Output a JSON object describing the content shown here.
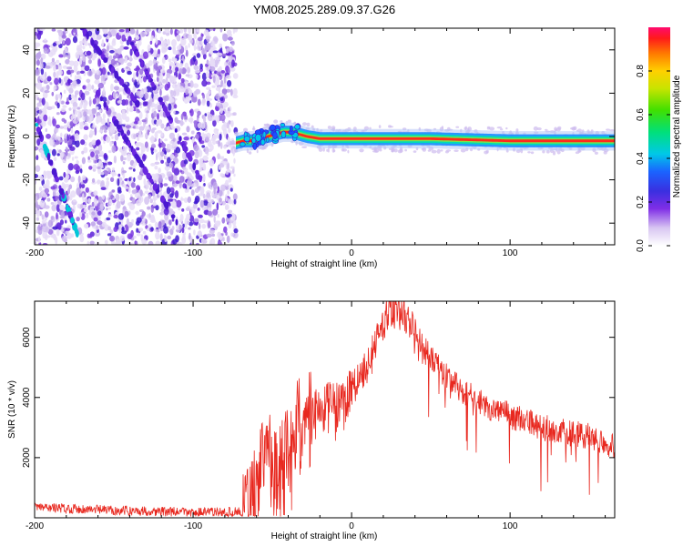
{
  "title": "YM08.2025.289.09.37.G26",
  "chart_data": [
    {
      "type": "heatmap",
      "name": "spectrogram",
      "xlabel": "Height of straight line (km)",
      "ylabel": "Frequency (Hz)",
      "xlim": [
        -200,
        166
      ],
      "ylim": [
        -50,
        50
      ],
      "xticks": [
        -200,
        -100,
        0,
        100
      ],
      "yticks": [
        -40,
        -20,
        0,
        20,
        40
      ],
      "noise_region_x": [
        -200,
        -73
      ],
      "signal_line": {
        "x": [
          -73,
          -68,
          -63,
          -58,
          -53,
          -48,
          -43,
          -38,
          -33,
          -28,
          -20,
          -10,
          0,
          20,
          50,
          100,
          166
        ],
        "y": [
          -3,
          -2,
          -2,
          -1,
          0,
          1,
          2,
          2,
          1,
          0,
          -1,
          -1,
          -1,
          -1,
          -1,
          -2,
          -2
        ]
      },
      "colorbar": {
        "label": "Normalized spectral amplitude",
        "ticks": [
          "0.0",
          "0.2",
          "0.4",
          "0.6",
          "0.8"
        ],
        "range": [
          0,
          1
        ]
      }
    },
    {
      "type": "line",
      "name": "snr",
      "xlabel": "Height of straight line (km)",
      "ylabel": "SNR (10 * v/v)",
      "xlim": [
        -200,
        166
      ],
      "ylim": [
        0,
        7200
      ],
      "xticks": [
        -200,
        -100,
        0,
        100
      ],
      "yticks": [
        2000,
        4000,
        6000
      ],
      "series": [
        {
          "name": "SNR",
          "color": "#e8281f",
          "x": [
            -200,
            -150,
            -100,
            -80,
            -70,
            -65,
            -60,
            -55,
            -50,
            -45,
            -40,
            -35,
            -30,
            -20,
            -10,
            0,
            10,
            20,
            25,
            30,
            35,
            40,
            50,
            60,
            70,
            80,
            90,
            100,
            110,
            120,
            130,
            140,
            150,
            166
          ],
          "y": [
            350,
            250,
            180,
            180,
            220,
            350,
            800,
            2500,
            1500,
            1500,
            2000,
            2800,
            3300,
            3500,
            3700,
            4300,
            5000,
            6500,
            6800,
            6900,
            6700,
            6000,
            5300,
            4700,
            4200,
            3900,
            3600,
            3400,
            3200,
            3000,
            2900,
            2800,
            2700,
            2400
          ]
        }
      ]
    }
  ]
}
